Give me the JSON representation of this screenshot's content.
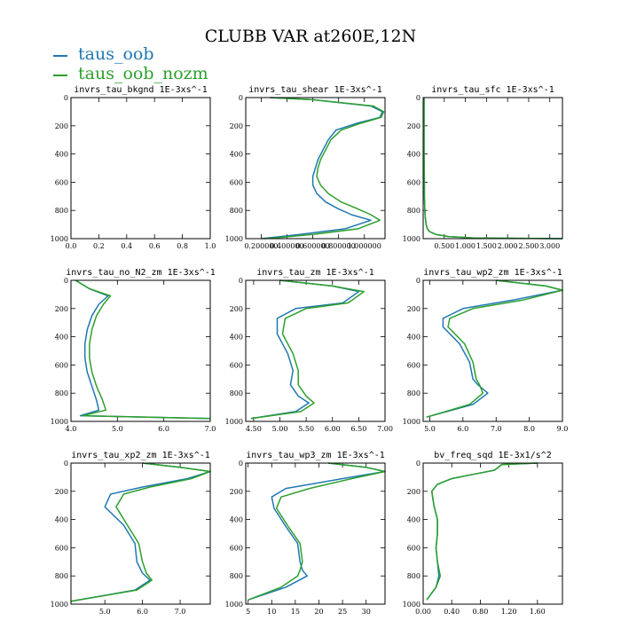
{
  "title": "CLUBB VAR at260E,12N",
  "legend": [
    {
      "name": "taus_oob",
      "color": "#2077b4"
    },
    {
      "name": "taus_oob_nozm",
      "color": "#2ca02c"
    }
  ],
  "chart_data": [
    {
      "type": "line",
      "title": "invrs_tau_bkgnd  1E-3xs^-1",
      "xlim": [
        0.0,
        1.0
      ],
      "ylim": [
        1000,
        0
      ],
      "xticks": [
        "0.0",
        "0.2",
        "0.4",
        "0.6",
        "0.8",
        "1.0"
      ],
      "xtick_values": [
        0.0,
        0.2,
        0.4,
        0.6,
        0.8,
        1.0
      ],
      "yticks": [
        0,
        200,
        400,
        600,
        800,
        1000
      ],
      "series": [
        {
          "color": "#2077b4",
          "x": [],
          "y": []
        },
        {
          "color": "#2ca02c",
          "x": [],
          "y": []
        }
      ]
    },
    {
      "type": "line",
      "title": "invrs_tau_shear  1E-3xs^-1",
      "xlim": [
        0.08,
        1.16
      ],
      "ylim": [
        1000,
        0
      ],
      "xticks": [
        "0.200000",
        "0.400000",
        "0.600000",
        "0.800000",
        "1.000000"
      ],
      "xtick_values": [
        0.2,
        0.4,
        0.6,
        0.8,
        1.0
      ],
      "yticks": [
        0,
        200,
        400,
        600,
        800,
        1000
      ],
      "series": [
        {
          "color": "#2077b4",
          "x": [
            0.27,
            0.6,
            1.05,
            1.14,
            1.12,
            0.95,
            0.78,
            0.72,
            0.68,
            0.64,
            0.62,
            0.6,
            0.6,
            0.63,
            0.7,
            0.8,
            0.9,
            1.05,
            0.85,
            0.5,
            0.25,
            0.2
          ],
          "y": [
            0,
            15,
            60,
            100,
            140,
            180,
            230,
            300,
            370,
            440,
            500,
            560,
            620,
            680,
            740,
            790,
            830,
            870,
            930,
            970,
            995,
            1000
          ]
        },
        {
          "color": "#2ca02c",
          "x": [
            0.27,
            0.6,
            1.07,
            1.15,
            1.13,
            0.98,
            0.82,
            0.74,
            0.7,
            0.66,
            0.64,
            0.63,
            0.66,
            0.72,
            0.82,
            0.95,
            1.05,
            1.12,
            0.95,
            0.6,
            0.3,
            0.22
          ],
          "y": [
            0,
            15,
            60,
            100,
            140,
            180,
            230,
            300,
            370,
            440,
            500,
            560,
            620,
            680,
            740,
            790,
            830,
            870,
            930,
            970,
            995,
            1000
          ]
        }
      ]
    },
    {
      "type": "line",
      "title": "invrs_tau_sfc  1E-3xs^-1",
      "xlim": [
        0.0,
        3.3
      ],
      "ylim": [
        1000,
        0
      ],
      "xticks": [
        "0.500",
        "1.000",
        "1.500",
        "2.000",
        "2.500",
        "3.000"
      ],
      "xtick_values": [
        0.5,
        1.0,
        1.5,
        2.0,
        2.5,
        3.0
      ],
      "yticks": [
        0,
        200,
        400,
        600,
        800,
        1000
      ],
      "series": [
        {
          "color": "#2077b4",
          "x": [
            0.02,
            0.02,
            0.02,
            0.03,
            0.03,
            0.04,
            0.05,
            0.07,
            0.1,
            0.15,
            0.3,
            0.6,
            1.2,
            3.3
          ],
          "y": [
            0,
            200,
            400,
            600,
            700,
            800,
            850,
            900,
            930,
            950,
            970,
            985,
            995,
            1000
          ]
        },
        {
          "color": "#2ca02c",
          "x": [
            0.02,
            0.02,
            0.02,
            0.03,
            0.03,
            0.04,
            0.05,
            0.07,
            0.1,
            0.15,
            0.3,
            0.6,
            1.2,
            3.3
          ],
          "y": [
            0,
            200,
            400,
            600,
            700,
            800,
            850,
            900,
            930,
            950,
            970,
            985,
            995,
            1000
          ]
        }
      ]
    },
    {
      "type": "line",
      "title": "invrs_tau_no_N2_zm  1E-3xs^-1",
      "xlim": [
        4.0,
        7.0
      ],
      "ylim": [
        1000,
        0
      ],
      "xticks": [
        "4.0",
        "5.0",
        "6.0",
        "7.0"
      ],
      "xtick_values": [
        4.0,
        5.0,
        6.0,
        7.0
      ],
      "yticks": [
        0,
        200,
        400,
        600,
        800,
        1000
      ],
      "series": [
        {
          "color": "#2077b4",
          "x": [
            4.1,
            4.4,
            4.8,
            4.6,
            4.45,
            4.35,
            4.3,
            4.3,
            4.35,
            4.45,
            4.55,
            4.6,
            4.2,
            7.0
          ],
          "y": [
            0,
            60,
            110,
            170,
            250,
            350,
            450,
            550,
            650,
            750,
            850,
            920,
            960,
            980
          ]
        },
        {
          "color": "#2ca02c",
          "x": [
            4.1,
            4.4,
            4.85,
            4.7,
            4.55,
            4.45,
            4.4,
            4.4,
            4.45,
            4.55,
            4.68,
            4.75,
            4.25,
            7.0
          ],
          "y": [
            0,
            60,
            110,
            170,
            250,
            350,
            450,
            550,
            650,
            750,
            850,
            920,
            960,
            980
          ]
        }
      ]
    },
    {
      "type": "line",
      "title": "invrs_tau_zm  1E-3xs^-1",
      "xlim": [
        4.35,
        7.0
      ],
      "ylim": [
        1000,
        0
      ],
      "xticks": [
        "4.50",
        "5.00",
        "5.50",
        "6.00",
        "6.50",
        "7.00"
      ],
      "xtick_values": [
        4.5,
        5.0,
        5.5,
        6.0,
        6.5,
        7.0
      ],
      "yticks": [
        0,
        200,
        400,
        600,
        800,
        1000
      ],
      "series": [
        {
          "color": "#2077b4",
          "x": [
            5.0,
            6.0,
            6.5,
            6.2,
            5.3,
            4.95,
            4.95,
            5.15,
            5.25,
            5.2,
            5.35,
            5.55,
            5.3,
            4.45
          ],
          "y": [
            0,
            40,
            80,
            160,
            200,
            270,
            380,
            520,
            640,
            740,
            820,
            870,
            930,
            980
          ]
        },
        {
          "color": "#2ca02c",
          "x": [
            5.0,
            6.0,
            6.6,
            6.3,
            5.5,
            5.1,
            5.05,
            5.25,
            5.35,
            5.35,
            5.5,
            5.65,
            5.4,
            4.45
          ],
          "y": [
            0,
            40,
            80,
            160,
            200,
            270,
            380,
            520,
            640,
            740,
            820,
            870,
            930,
            980
          ]
        }
      ]
    },
    {
      "type": "line",
      "title": "invrs_tau_wp2_zm  1E-3xs^-1",
      "xlim": [
        4.8,
        9.0
      ],
      "ylim": [
        1000,
        0
      ],
      "xticks": [
        "5.0",
        "6.0",
        "7.0",
        "8.0",
        "9.0"
      ],
      "xtick_values": [
        5.0,
        6.0,
        7.0,
        8.0,
        9.0
      ],
      "yticks": [
        0,
        200,
        400,
        600,
        800,
        1000
      ],
      "series": [
        {
          "color": "#2077b4",
          "x": [
            7.0,
            8.5,
            9.0,
            7.5,
            6.0,
            5.4,
            5.4,
            5.9,
            6.2,
            6.3,
            6.45,
            6.75,
            6.3,
            4.9
          ],
          "y": [
            0,
            40,
            70,
            140,
            200,
            270,
            330,
            450,
            580,
            700,
            740,
            800,
            880,
            970
          ]
        },
        {
          "color": "#2ca02c",
          "x": [
            7.0,
            8.5,
            9.0,
            7.8,
            6.3,
            5.6,
            5.55,
            6.05,
            6.3,
            6.4,
            6.5,
            6.6,
            6.2,
            4.9
          ],
          "y": [
            0,
            40,
            70,
            140,
            200,
            270,
            330,
            450,
            580,
            700,
            740,
            800,
            880,
            970
          ]
        }
      ]
    },
    {
      "type": "line",
      "title": "invrs_tau_xp2_zm  1E-3xs^-1",
      "xlim": [
        4.1,
        7.8
      ],
      "ylim": [
        1000,
        0
      ],
      "xticks": [
        "5.0",
        "6.0",
        "7.0"
      ],
      "xtick_values": [
        5.0,
        6.0,
        7.0
      ],
      "yticks": [
        0,
        200,
        400,
        600,
        800,
        1000
      ],
      "series": [
        {
          "color": "#2077b4",
          "x": [
            6.0,
            7.0,
            7.8,
            7.2,
            6.0,
            5.15,
            5.0,
            5.5,
            5.8,
            5.85,
            6.0,
            6.2,
            5.8,
            4.1
          ],
          "y": [
            0,
            30,
            60,
            110,
            170,
            220,
            310,
            440,
            570,
            700,
            780,
            830,
            900,
            980
          ]
        },
        {
          "color": "#2ca02c",
          "x": [
            6.0,
            7.0,
            7.8,
            7.3,
            6.2,
            5.5,
            5.3,
            5.6,
            5.9,
            6.0,
            6.1,
            6.25,
            5.85,
            4.1
          ],
          "y": [
            0,
            30,
            60,
            110,
            170,
            220,
            310,
            440,
            570,
            700,
            780,
            830,
            900,
            980
          ]
        }
      ]
    },
    {
      "type": "line",
      "title": "invrs_tau_wp3_zm  1E-3xs^-1",
      "xlim": [
        4.5,
        34.0
      ],
      "ylim": [
        1000,
        0
      ],
      "xticks": [
        "5",
        "10",
        "15",
        "20",
        "25",
        "30"
      ],
      "xtick_values": [
        5,
        10,
        15,
        20,
        25,
        30
      ],
      "yticks": [
        0,
        200,
        400,
        600,
        800,
        1000
      ],
      "series": [
        {
          "color": "#2077b4",
          "x": [
            22.0,
            30.0,
            34.0,
            25.0,
            13.0,
            10.0,
            10.5,
            13.0,
            15.5,
            16.0,
            16.5,
            17.5,
            13.0,
            5.0
          ],
          "y": [
            0,
            30,
            60,
            110,
            180,
            240,
            320,
            450,
            570,
            700,
            760,
            800,
            880,
            970
          ]
        },
        {
          "color": "#2ca02c",
          "x": [
            22.0,
            30.0,
            34.0,
            27.0,
            18.0,
            12.0,
            11.0,
            13.5,
            16.0,
            16.5,
            16.0,
            15.5,
            12.0,
            5.0
          ],
          "y": [
            0,
            30,
            60,
            110,
            180,
            240,
            320,
            450,
            570,
            700,
            760,
            800,
            880,
            970
          ]
        }
      ]
    },
    {
      "type": "line",
      "title": "bv_freq_sqd  1E-3x1/s^2",
      "xlim": [
        0.0,
        1.95
      ],
      "ylim": [
        1000,
        0
      ],
      "xticks": [
        "0.00",
        "0.40",
        "0.80",
        "1.20",
        "1.60"
      ],
      "xtick_values": [
        0.0,
        0.4,
        0.8,
        1.2,
        1.6
      ],
      "yticks": [
        0,
        200,
        400,
        600,
        800,
        1000
      ],
      "series": [
        {
          "color": "#2077b4",
          "x": [
            1.6,
            1.1,
            1.0,
            0.7,
            0.4,
            0.2,
            0.12,
            0.15,
            0.2,
            0.2,
            0.18,
            0.2,
            0.22,
            0.18,
            0.05
          ],
          "y": [
            0,
            10,
            50,
            80,
            110,
            150,
            200,
            300,
            400,
            500,
            600,
            700,
            800,
            880,
            970
          ]
        },
        {
          "color": "#2ca02c",
          "x": [
            1.6,
            1.1,
            1.0,
            0.7,
            0.4,
            0.2,
            0.12,
            0.15,
            0.2,
            0.2,
            0.18,
            0.2,
            0.24,
            0.18,
            0.05
          ],
          "y": [
            0,
            10,
            50,
            80,
            110,
            150,
            200,
            300,
            400,
            500,
            600,
            700,
            800,
            880,
            970
          ]
        }
      ]
    }
  ]
}
